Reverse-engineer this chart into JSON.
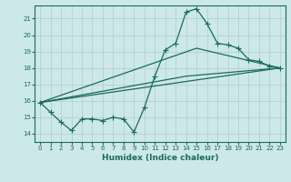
{
  "xlabel": "Humidex (Indice chaleur)",
  "background_color": "#cce8e8",
  "grid_color": "#b0cccc",
  "line_color": "#1a6b5a",
  "xlim": [
    -0.5,
    23.5
  ],
  "ylim": [
    13.5,
    21.8
  ],
  "yticks": [
    14,
    15,
    16,
    17,
    18,
    19,
    20,
    21
  ],
  "xticks": [
    0,
    1,
    2,
    3,
    4,
    5,
    6,
    7,
    8,
    9,
    10,
    11,
    12,
    13,
    14,
    15,
    16,
    17,
    18,
    19,
    20,
    21,
    22,
    23
  ],
  "line1_x": [
    0,
    1,
    2,
    3,
    4,
    5,
    6,
    7,
    8,
    9,
    10,
    11,
    12,
    13,
    14,
    15,
    16,
    17,
    18,
    19,
    20,
    21,
    22,
    23
  ],
  "line1_y": [
    15.9,
    15.3,
    14.7,
    14.2,
    14.9,
    14.9,
    14.8,
    15.0,
    14.9,
    14.1,
    15.6,
    17.5,
    19.1,
    19.5,
    21.4,
    21.6,
    20.7,
    19.5,
    19.4,
    19.2,
    18.5,
    18.4,
    18.1,
    18.0
  ],
  "line2_x": [
    0,
    23
  ],
  "line2_y": [
    15.9,
    18.0
  ],
  "line3_x": [
    0,
    14,
    23
  ],
  "line3_y": [
    15.9,
    17.5,
    18.0
  ],
  "line4_x": [
    0,
    15,
    23
  ],
  "line4_y": [
    15.9,
    19.2,
    18.0
  ],
  "markersize": 2.0,
  "linewidth": 0.9
}
